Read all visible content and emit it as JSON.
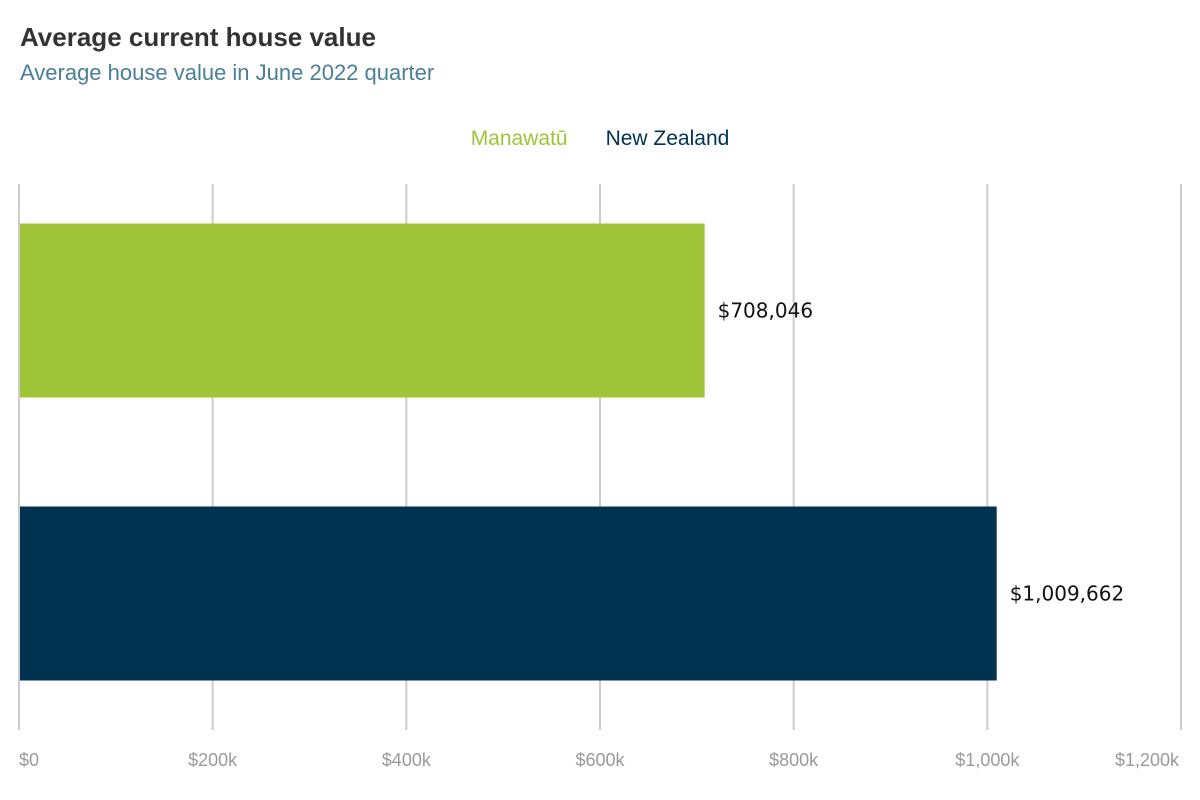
{
  "chart_data": {
    "type": "bar",
    "orientation": "horizontal",
    "title": "Average current house value",
    "subtitle": "Average house value in June 2022 quarter",
    "categories": [
      "Manawatū",
      "New Zealand"
    ],
    "values": [
      708046,
      1009662
    ],
    "data_labels": [
      "$708,046",
      "$1,009,662"
    ],
    "colors": [
      "#a0c437",
      "#003250"
    ],
    "xlim": [
      0,
      1200000
    ],
    "x_ticks": [
      0,
      200000,
      400000,
      600000,
      800000,
      1000000,
      1200000
    ],
    "x_tick_labels": [
      "$0",
      "$200k",
      "$400k",
      "$600k",
      "$800k",
      "$1,000k",
      "$1,200k"
    ],
    "grid": "vertical",
    "legend_position": "top-center",
    "gridline_color": "#cccccc",
    "tick_label_color": "#9a9a9a"
  }
}
